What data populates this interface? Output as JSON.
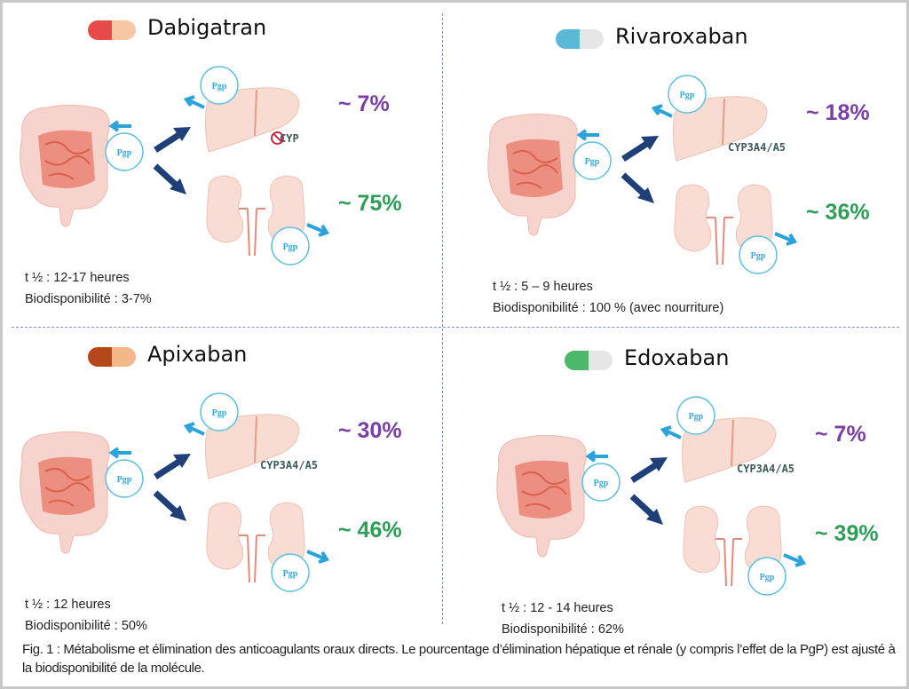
{
  "panels": [
    {
      "drug": "Dabigatran",
      "pill_colors": [
        "#e84a4a",
        "#f7c7a3"
      ],
      "liver_pct": "~ 7%",
      "kidney_pct": "~ 75%",
      "enzyme": "CYP",
      "enzyme_blocked": true,
      "half_life": "t ½  : 12-17 heures",
      "bioavailability": "Biodisponibilité : 3-7%"
    },
    {
      "drug": "Rivaroxaban",
      "pill_colors": [
        "#5bb9d8",
        "#e6e6e6"
      ],
      "liver_pct": "~ 18%",
      "kidney_pct": "~ 36%",
      "enzyme": "CYP3A4/A5",
      "enzyme_blocked": false,
      "half_life": "t ½  : 5 – 9 heures",
      "bioavailability": "Biodisponibilité : 100 % (avec nourriture)"
    },
    {
      "drug": "Apixaban",
      "pill_colors": [
        "#b5471b",
        "#f4b78a"
      ],
      "liver_pct": "~ 30%",
      "kidney_pct": "~ 46%",
      "enzyme": "CYP3A4/A5",
      "enzyme_blocked": false,
      "half_life": "t ½  : 12 heures",
      "bioavailability": "Biodisponibilité : 50%"
    },
    {
      "drug": "Edoxaban",
      "pill_colors": [
        "#4cb86a",
        "#e6e6e6"
      ],
      "liver_pct": "~ 7%",
      "kidney_pct": "~ 39%",
      "enzyme": "CYP3A4/A5",
      "enzyme_blocked": false,
      "half_life": "t ½  : 12 - 14 heures",
      "bioavailability": "Biodisponibilité : 62%"
    }
  ],
  "pgp_label": "Pgp",
  "caption": "Fig. 1 : Métabolisme et élimination des anticoagulants oraux directs. Le pourcentage d’élimination hépatique et rénale (y compris l’effet de la PgP) est ajusté à la biodisponibilité de la molécule."
}
